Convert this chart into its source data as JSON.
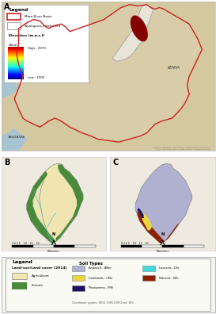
{
  "figure_bg": "#ffffff",
  "panel_A": {
    "label": "A",
    "bg_color": "#c8b98a",
    "tanzania_label": "TANZANIA",
    "kenya_label": "KENYA",
    "attribution": "National Geographic, Esri, Garmin, HERE/NAVTEQ/CGIS/UNITAR,\nNASA, ESA, METI, NRCAN, GEBCO, NOAA, ikonografii.IT Corp.",
    "mara_color": "#cc2222",
    "water_color": "#a8c8d8",
    "legend": {
      "mara_label": "Mara River Basin",
      "ny_label": "Nyangores catchment",
      "elev_title": "Elevation (m.a.s.l)",
      "value_label": "Value",
      "high": "High : 2970",
      "low": "Low : 1905"
    }
  },
  "panel_B": {
    "label": "B",
    "bg_color": "#f0ede0",
    "agri_color": "#f0e4b0",
    "forest_color": "#4a8a3c",
    "river_color": "#5aafbf"
  },
  "panel_C": {
    "label": "C",
    "bg_color": "#f0ede0",
    "andosol_color": "#b0b0d0",
    "nitosol_color": "#8b2000",
    "cambi_color": "#e8d840",
    "phaeo_color": "#1a1060",
    "luvosol_color": "#40d8d8"
  },
  "legend_bottom": {
    "title": "Legend",
    "lulc_title": "Land-use/Land cover (2014)",
    "lulc_items": [
      {
        "label": "Agriculture",
        "color": "#f0e4b0"
      },
      {
        "label": "Forests",
        "color": "#4a8a3c"
      }
    ],
    "soil_title": "Soil Types",
    "soil_items": [
      {
        "label": "Andosols - ANm",
        "color": "#b0b0d0"
      },
      {
        "label": "Cambisols - CMu",
        "color": "#e8d840"
      },
      {
        "label": "Luvosols - LVv",
        "color": "#40d8d8"
      },
      {
        "label": "Nitosols - NTu",
        "color": "#8b2000"
      },
      {
        "label": "Phaeozems - PHli",
        "color": "#1a1060"
      }
    ],
    "coord_system": "Coordinate system: WGS 1984 UTM Zone 36S"
  },
  "scale_ticks": "0 2.5 5    10    15    20",
  "scale_label": "Kilometers"
}
